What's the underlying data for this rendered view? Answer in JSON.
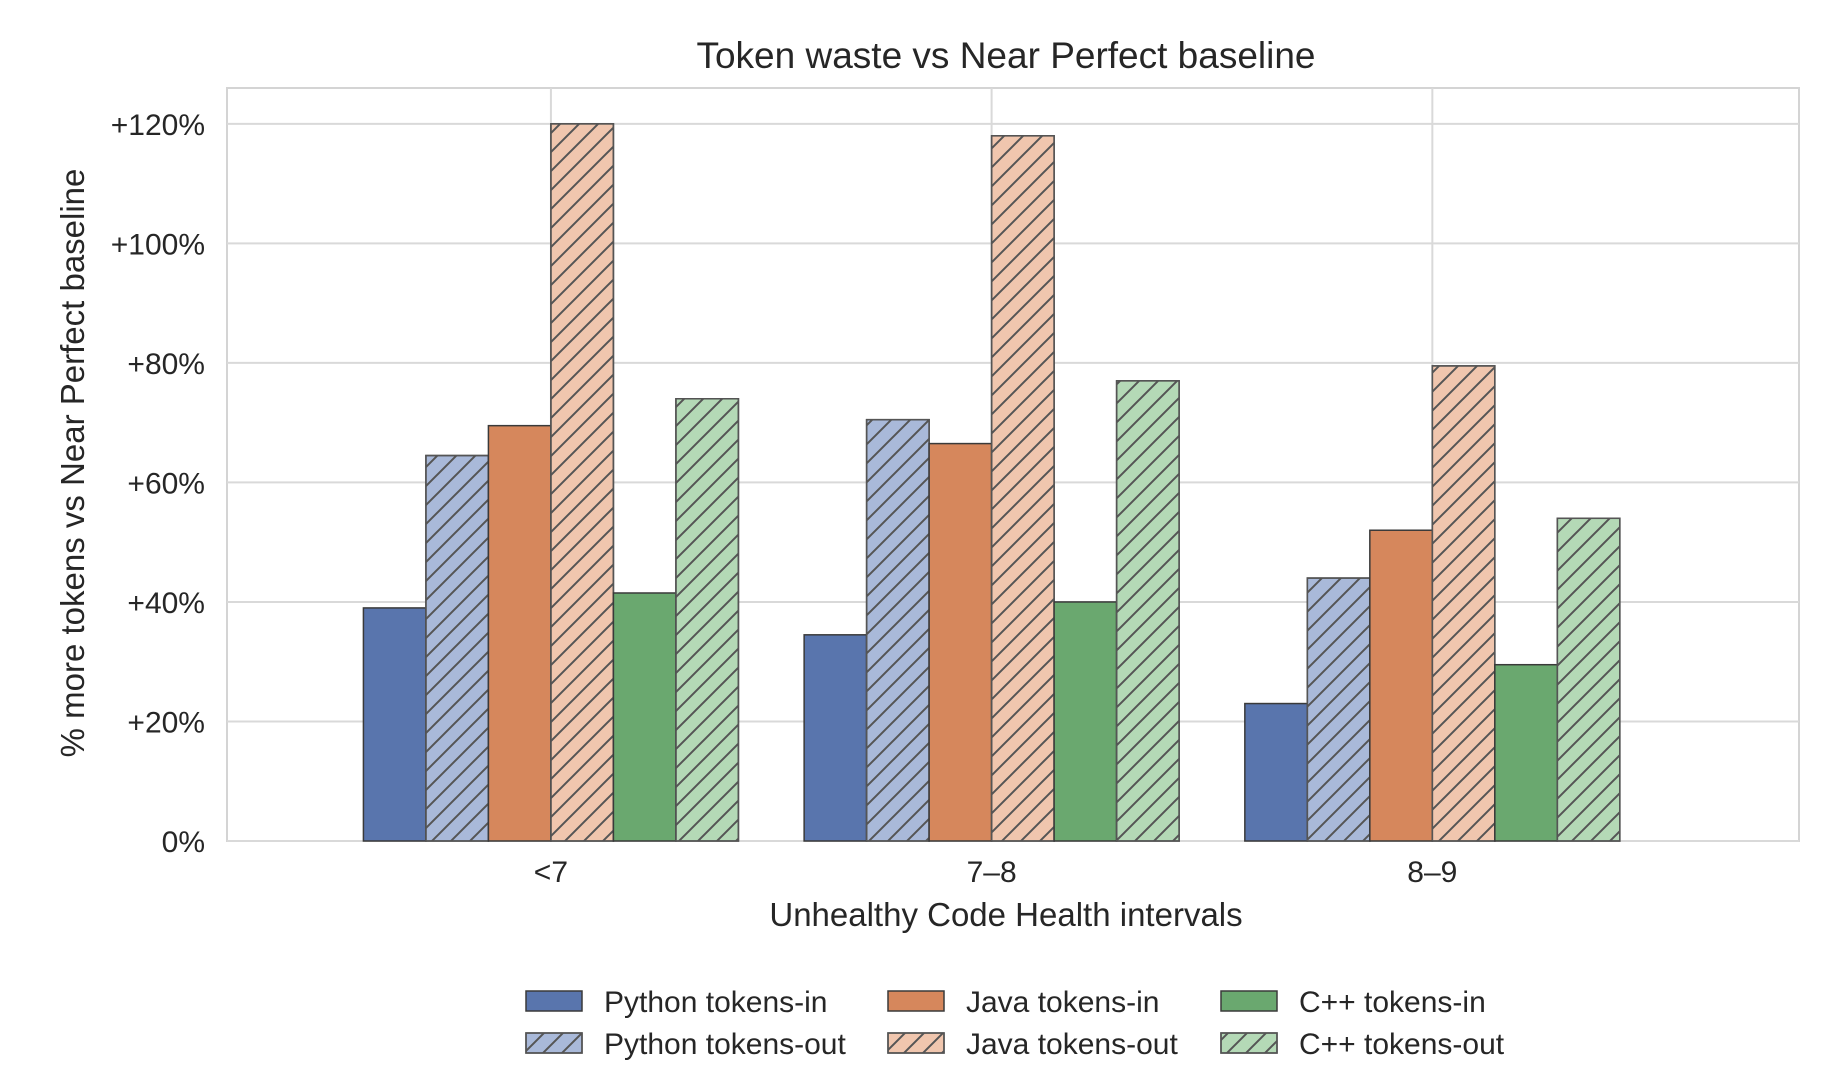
{
  "chart_data": {
    "type": "bar",
    "title": "Token waste vs Near Perfect baseline",
    "xlabel": "Unhealthy Code Health intervals",
    "ylabel": "% more tokens vs Near Perfect baseline",
    "categories": [
      "<7",
      "7–8",
      "8–9"
    ],
    "ylim": [
      0,
      126
    ],
    "yticks": [
      0,
      20,
      40,
      60,
      80,
      100,
      120
    ],
    "ytick_labels": [
      "0%",
      "+20%",
      "+40%",
      "+60%",
      "+80%",
      "+100%",
      "+120%"
    ],
    "grid": true,
    "legend_placement": "bottom-center",
    "series": [
      {
        "name": "Python tokens-in",
        "color": "#5975ad",
        "hatched": false,
        "values": [
          39,
          34.5,
          23
        ]
      },
      {
        "name": "Python tokens-out",
        "color": "#a9b9d9",
        "hatched": true,
        "values": [
          64.5,
          70.5,
          44
        ]
      },
      {
        "name": "Java tokens-in",
        "color": "#d6875c",
        "hatched": false,
        "values": [
          69.5,
          66.5,
          52
        ]
      },
      {
        "name": "Java tokens-out",
        "color": "#f0c6ae",
        "hatched": true,
        "values": [
          120,
          118,
          79.5
        ]
      },
      {
        "name": "C++ tokens-in",
        "color": "#6aa86f",
        "hatched": false,
        "values": [
          41.5,
          40,
          29.5
        ]
      },
      {
        "name": "C++ tokens-out",
        "color": "#b4d9b6",
        "hatched": true,
        "values": [
          74,
          77,
          54
        ]
      }
    ]
  }
}
